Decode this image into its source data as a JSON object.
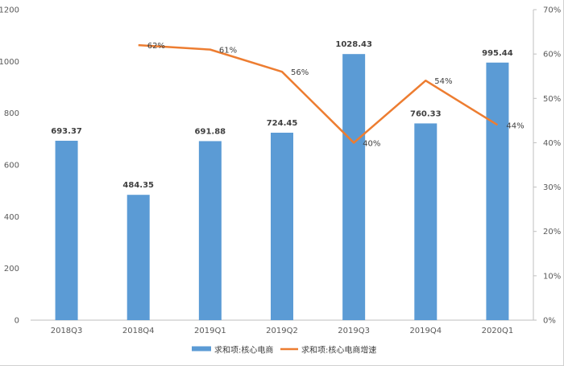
{
  "chart_data": {
    "type": "bar",
    "categories": [
      "2018Q3",
      "2018Q4",
      "2019Q1",
      "2019Q2",
      "2019Q3",
      "2019Q4",
      "2020Q1"
    ],
    "series": [
      {
        "name": "求和项:核心电商",
        "type": "bar",
        "axis": "left",
        "color": "#5b9bd5",
        "values": [
          693.37,
          484.35,
          691.88,
          724.45,
          1028.43,
          760.33,
          995.44
        ],
        "labels": [
          "693.37",
          "484.35",
          "691.88",
          "724.45",
          "1028.43",
          "760.33",
          "995.44"
        ]
      },
      {
        "name": "求和项:核心电商增速",
        "type": "line",
        "axis": "right",
        "color": "#ed7d31",
        "values": [
          null,
          62,
          61,
          56,
          40,
          54,
          44
        ],
        "labels": [
          "",
          "62%",
          "61%",
          "56%",
          "40%",
          "54%",
          "44%"
        ]
      }
    ],
    "y_left": {
      "ylim": [
        0,
        1200
      ],
      "ticks": [
        "0",
        "200",
        "400",
        "600",
        "800",
        "1000",
        "1200"
      ]
    },
    "y_right": {
      "ylim": [
        0,
        70
      ],
      "ticks": [
        "0%",
        "10%",
        "20%",
        "30%",
        "40%",
        "50%",
        "60%",
        "70%"
      ]
    },
    "legend": "bottom",
    "grid": false
  }
}
